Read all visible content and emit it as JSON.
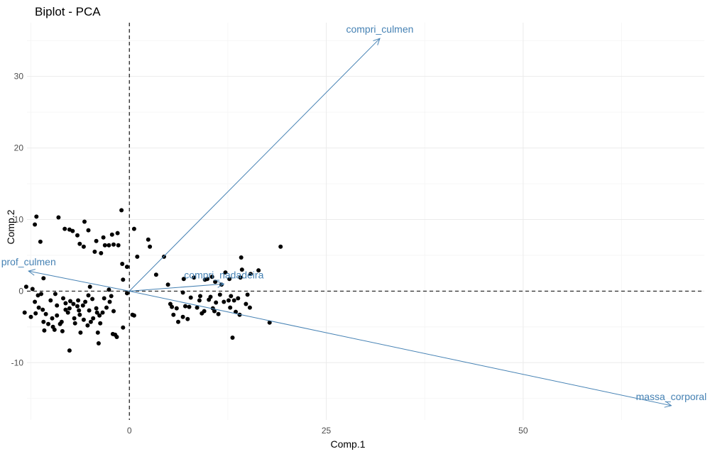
{
  "chart_data": {
    "type": "scatter",
    "title": "Biplot - PCA",
    "xlabel": "Comp.1",
    "ylabel": "Comp.2",
    "xlim": [
      -13,
      73
    ],
    "ylim": [
      -18,
      37.5
    ],
    "x_ticks": [
      0,
      25,
      50
    ],
    "y_ticks": [
      -10,
      0,
      10,
      20,
      30
    ],
    "grid": true,
    "reference_lines": {
      "x": 0,
      "y": 0,
      "style": "dashed"
    },
    "arrow_color": "#4682b4",
    "point_color": "#000000",
    "loadings": [
      {
        "name": "compri_culmen",
        "x": 31.8,
        "y": 35.3
      },
      {
        "name": "prof_culmen",
        "x": -12.8,
        "y": 2.8
      },
      {
        "name": "compri_nadadeira",
        "x": 12.0,
        "y": 1.0
      },
      {
        "name": "massa_corporal",
        "x": 68.8,
        "y": -16.0
      }
    ],
    "points": [
      [
        -13.1,
        0.6
      ],
      [
        -12.3,
        0.3
      ],
      [
        -13.3,
        -3.0
      ],
      [
        -12.5,
        -3.6
      ],
      [
        -12.0,
        -1.5
      ],
      [
        -11.6,
        -0.6
      ],
      [
        -11.9,
        -3.1
      ],
      [
        -11.2,
        -0.4
      ],
      [
        -11.5,
        -2.3
      ],
      [
        -11.0,
        -2.6
      ],
      [
        -10.9,
        -4.3
      ],
      [
        -10.8,
        -5.5
      ],
      [
        -10.6,
        -3.2
      ],
      [
        -10.3,
        -4.6
      ],
      [
        -10.9,
        1.8
      ],
      [
        -10.0,
        -1.3
      ],
      [
        -9.8,
        -3.8
      ],
      [
        -9.7,
        -5.0
      ],
      [
        -9.5,
        -5.4
      ],
      [
        -9.2,
        -2.0
      ],
      [
        -9.4,
        -0.4
      ],
      [
        -9.2,
        -3.4
      ],
      [
        -8.8,
        -4.6
      ],
      [
        -8.6,
        -4.3
      ],
      [
        -8.4,
        -1.0
      ],
      [
        -8.1,
        -1.7
      ],
      [
        -8.1,
        -2.6
      ],
      [
        -8.5,
        -5.6
      ],
      [
        -7.8,
        -3.0
      ],
      [
        -7.6,
        -2.4
      ],
      [
        -7.5,
        -1.4
      ],
      [
        -7.6,
        -8.3
      ],
      [
        -7.1,
        -1.8
      ],
      [
        -7.0,
        -3.8
      ],
      [
        -6.9,
        -4.5
      ],
      [
        -6.6,
        -2.1
      ],
      [
        -6.5,
        -1.3
      ],
      [
        -6.4,
        -2.7
      ],
      [
        -6.3,
        -3.3
      ],
      [
        -6.2,
        -5.8
      ],
      [
        -5.9,
        -2.0
      ],
      [
        -5.8,
        -4.0
      ],
      [
        -5.6,
        -1.5
      ],
      [
        -5.3,
        -4.8
      ],
      [
        -5.2,
        -0.6
      ],
      [
        -5.1,
        -2.7
      ],
      [
        -5.0,
        0.6
      ],
      [
        -4.9,
        -4.3
      ],
      [
        -4.7,
        -1.1
      ],
      [
        -4.6,
        -3.8
      ],
      [
        -4.2,
        -2.4
      ],
      [
        -4.1,
        -3.0
      ],
      [
        -4.0,
        -5.8
      ],
      [
        -3.9,
        -7.3
      ],
      [
        -3.8,
        -3.4
      ],
      [
        -3.7,
        -4.5
      ],
      [
        -3.4,
        -3.0
      ],
      [
        -3.2,
        -1.0
      ],
      [
        -2.9,
        -2.3
      ],
      [
        -2.6,
        0.2
      ],
      [
        -2.5,
        -1.5
      ],
      [
        -2.3,
        -0.7
      ],
      [
        -2.1,
        -6.0
      ],
      [
        -2.0,
        -2.8
      ],
      [
        -1.8,
        -6.1
      ],
      [
        -1.6,
        -6.4
      ],
      [
        -0.8,
        -5.1
      ],
      [
        -0.3,
        -0.3
      ],
      [
        0.4,
        -3.3
      ],
      [
        0.6,
        -3.4
      ],
      [
        -12.0,
        9.3
      ],
      [
        -11.8,
        10.4
      ],
      [
        -11.3,
        6.9
      ],
      [
        -9.0,
        10.3
      ],
      [
        -8.2,
        8.7
      ],
      [
        -7.6,
        8.6
      ],
      [
        -7.2,
        8.4
      ],
      [
        -6.6,
        7.8
      ],
      [
        -6.3,
        6.6
      ],
      [
        -5.8,
        6.2
      ],
      [
        -5.7,
        9.7
      ],
      [
        -5.2,
        8.5
      ],
      [
        -4.4,
        5.5
      ],
      [
        -4.2,
        7.0
      ],
      [
        -3.6,
        5.3
      ],
      [
        -3.3,
        7.5
      ],
      [
        -3.1,
        6.4
      ],
      [
        -2.6,
        6.4
      ],
      [
        -2.2,
        7.9
      ],
      [
        -2.0,
        6.5
      ],
      [
        -1.5,
        8.1
      ],
      [
        -1.4,
        6.4
      ],
      [
        -1.0,
        11.3
      ],
      [
        -0.8,
        1.6
      ],
      [
        -0.9,
        3.8
      ],
      [
        -0.3,
        3.4
      ],
      [
        0.6,
        8.7
      ],
      [
        1.0,
        4.8
      ],
      [
        2.4,
        7.2
      ],
      [
        2.6,
        6.2
      ],
      [
        3.4,
        2.3
      ],
      [
        4.4,
        4.8
      ],
      [
        4.9,
        0.9
      ],
      [
        5.2,
        -1.8
      ],
      [
        5.4,
        -2.2
      ],
      [
        5.6,
        -3.3
      ],
      [
        6.0,
        -2.4
      ],
      [
        6.2,
        -4.3
      ],
      [
        6.8,
        -0.2
      ],
      [
        6.9,
        1.7
      ],
      [
        6.8,
        -3.6
      ],
      [
        7.1,
        -2.1
      ],
      [
        7.4,
        -3.9
      ],
      [
        7.8,
        -0.9
      ],
      [
        7.6,
        -2.2
      ],
      [
        8.2,
        1.9
      ],
      [
        8.6,
        -2.3
      ],
      [
        8.9,
        -1.3
      ],
      [
        9.0,
        -0.7
      ],
      [
        9.2,
        -3.1
      ],
      [
        9.5,
        -2.8
      ],
      [
        9.6,
        1.6
      ],
      [
        9.9,
        1.7
      ],
      [
        10.1,
        -1.2
      ],
      [
        10.3,
        -0.8
      ],
      [
        10.6,
        -2.4
      ],
      [
        10.8,
        -2.8
      ],
      [
        10.9,
        1.3
      ],
      [
        11.0,
        -1.6
      ],
      [
        11.3,
        -3.2
      ],
      [
        11.5,
        -0.5
      ],
      [
        11.7,
        0.9
      ],
      [
        12.0,
        -1.5
      ],
      [
        12.2,
        2.6
      ],
      [
        12.6,
        -1.3
      ],
      [
        12.8,
        -2.3
      ],
      [
        12.9,
        -0.7
      ],
      [
        13.1,
        -6.5
      ],
      [
        13.3,
        -1.3
      ],
      [
        13.5,
        -2.9
      ],
      [
        13.8,
        -1.0
      ],
      [
        14.0,
        -3.3
      ],
      [
        14.2,
        4.7
      ],
      [
        14.1,
        1.9
      ],
      [
        14.3,
        3.0
      ],
      [
        14.8,
        -1.8
      ],
      [
        15.0,
        -0.5
      ],
      [
        15.3,
        -2.3
      ],
      [
        15.4,
        2.4
      ],
      [
        16.4,
        2.9
      ],
      [
        17.8,
        -4.4
      ],
      [
        19.2,
        6.2
      ],
      [
        12.7,
        1.7
      ],
      [
        10.5,
        2.0
      ]
    ]
  }
}
